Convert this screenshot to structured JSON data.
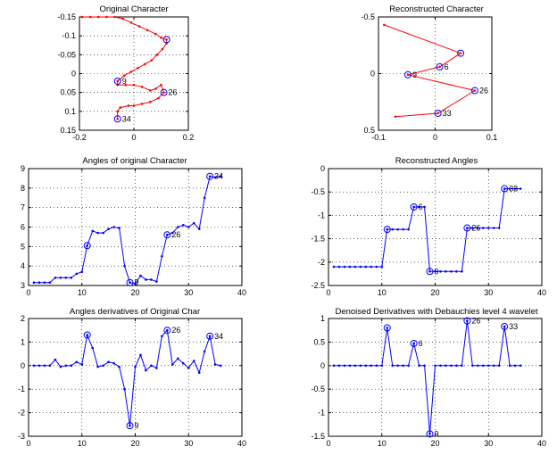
{
  "chart_data": [
    {
      "id": "orig-char",
      "title": "Original Character",
      "type": "line",
      "xlim": [
        -0.2,
        0.2
      ],
      "ylim": [
        -0.15,
        0.15
      ],
      "ydir": "reverse",
      "aspect": "equal",
      "grid": true,
      "color": "#ff0000",
      "xticks": [
        -0.2,
        0,
        0.2
      ],
      "xtick_labels": [
        "-0.2",
        "0",
        "0.2"
      ],
      "yticks": [
        -0.15,
        -0.1,
        -0.05,
        0,
        0.05,
        0.1,
        0.15
      ],
      "ytick_labels": [
        "-0.15",
        "-0.1",
        "-0.05",
        "0",
        "0.05",
        "0.1",
        "0.15"
      ],
      "x": [
        -0.19,
        -0.16,
        -0.13,
        -0.1,
        -0.07,
        -0.04,
        -0.01,
        0.02,
        0.05,
        0.08,
        0.1,
        0.12,
        0.12,
        0.105,
        0.085,
        0.065,
        0.04,
        0.015,
        -0.01,
        -0.035,
        -0.06,
        -0.06,
        -0.03,
        0.0,
        0.03,
        0.06,
        0.08,
        0.1,
        0.11,
        0.09,
        0.06,
        0.03,
        -0.0,
        -0.02,
        -0.05,
        -0.06,
        -0.06
      ],
      "y": [
        -0.15,
        -0.15,
        -0.15,
        -0.15,
        -0.15,
        -0.145,
        -0.135,
        -0.125,
        -0.115,
        -0.105,
        -0.095,
        -0.09,
        -0.08,
        -0.065,
        -0.05,
        -0.035,
        -0.025,
        -0.015,
        -0.005,
        0.005,
        0.02,
        0.03,
        0.03,
        0.03,
        0.035,
        0.045,
        0.04,
        0.03,
        0.05,
        0.065,
        0.075,
        0.08,
        0.085,
        0.085,
        0.09,
        0.1,
        0.12
      ],
      "markers": [
        {
          "index": 11,
          "label": ""
        },
        {
          "index": 20,
          "label": "9"
        },
        {
          "index": 28,
          "label": "26"
        },
        {
          "index": 36,
          "label": "34"
        }
      ]
    },
    {
      "id": "recon-char",
      "title": "Reconstructed Character",
      "type": "line",
      "xlim": [
        -0.1,
        0.1
      ],
      "ylim": [
        -0.5,
        0.5
      ],
      "ydir": "reverse",
      "aspect": "equal",
      "grid": true,
      "color": "#ff0000",
      "xticks": [
        -0.1,
        0,
        0.1
      ],
      "xtick_labels": [
        "-0.1",
        "0",
        "0.1"
      ],
      "yticks": [
        -0.5,
        0,
        0.5
      ],
      "ytick_labels": [
        "-0.5",
        "0",
        "0.5"
      ],
      "x": [
        -0.09,
        0.045,
        0.008,
        -0.048,
        0.07,
        0.005,
        -0.07
      ],
      "y": [
        -0.43,
        -0.18,
        -0.06,
        0.01,
        0.15,
        0.35,
        0.38
      ],
      "markers": [
        {
          "index": 1,
          "label": ""
        },
        {
          "index": 2,
          "label": "6"
        },
        {
          "index": 3,
          "label": "9"
        },
        {
          "index": 4,
          "label": "26"
        },
        {
          "index": 5,
          "label": "33"
        }
      ]
    },
    {
      "id": "orig-angles",
      "title": "Angles of original Character",
      "type": "line",
      "xlim": [
        0,
        40
      ],
      "ylim": [
        3,
        9
      ],
      "grid": true,
      "color": "#0000ff",
      "xticks": [
        0,
        10,
        20,
        30,
        40
      ],
      "xtick_labels": [
        "0",
        "10",
        "20",
        "30",
        "40"
      ],
      "yticks": [
        3,
        4,
        5,
        6,
        7,
        8,
        9
      ],
      "ytick_labels": [
        "3",
        "4",
        "5",
        "6",
        "7",
        "8",
        "9"
      ],
      "x": [
        1,
        2,
        3,
        4,
        5,
        6,
        7,
        8,
        9,
        10,
        11,
        12,
        13,
        14,
        15,
        16,
        17,
        18,
        19,
        20,
        21,
        22,
        23,
        24,
        25,
        26,
        27,
        28,
        29,
        30,
        31,
        32,
        33,
        34,
        35,
        36
      ],
      "y": [
        3.15,
        3.15,
        3.15,
        3.15,
        3.4,
        3.4,
        3.4,
        3.4,
        3.6,
        3.7,
        5.05,
        5.8,
        5.7,
        5.7,
        5.9,
        6.0,
        5.95,
        4.0,
        3.15,
        3.1,
        3.5,
        3.3,
        3.3,
        3.2,
        4.5,
        5.6,
        5.7,
        6.0,
        6.1,
        6.0,
        6.2,
        5.9,
        7.5,
        8.6,
        8.55,
        8.6
      ],
      "markers": [
        {
          "index": 10,
          "label": ""
        },
        {
          "index": 18,
          "label": "9"
        },
        {
          "index": 25,
          "label": "26"
        },
        {
          "index": 33,
          "label": "34"
        }
      ]
    },
    {
      "id": "recon-angles",
      "title": "Reconstructed Angles",
      "type": "line",
      "xlim": [
        0,
        40
      ],
      "ylim": [
        -2.5,
        0
      ],
      "grid": true,
      "color": "#0000ff",
      "xticks": [
        0,
        10,
        20,
        30,
        40
      ],
      "xtick_labels": [
        "0",
        "10",
        "20",
        "30",
        "40"
      ],
      "yticks": [
        -2.5,
        -2,
        -1.5,
        -1,
        -0.5,
        0
      ],
      "ytick_labels": [
        "-2.5",
        "-2",
        "-1.5",
        "-1",
        "-0.5",
        "0"
      ],
      "x": [
        1,
        2,
        3,
        4,
        5,
        6,
        7,
        8,
        9,
        10,
        11,
        12,
        13,
        14,
        15,
        16,
        17,
        18,
        19,
        20,
        21,
        22,
        23,
        24,
        25,
        26,
        27,
        28,
        29,
        30,
        31,
        32,
        33,
        34,
        35,
        36
      ],
      "y": [
        -2.1,
        -2.1,
        -2.1,
        -2.1,
        -2.1,
        -2.1,
        -2.1,
        -2.1,
        -2.1,
        -2.1,
        -1.3,
        -1.3,
        -1.3,
        -1.3,
        -1.3,
        -0.82,
        -0.82,
        -0.82,
        -2.2,
        -2.2,
        -2.2,
        -2.2,
        -2.2,
        -2.2,
        -2.2,
        -1.27,
        -1.27,
        -1.27,
        -1.27,
        -1.27,
        -1.27,
        -1.27,
        -0.43,
        -0.43,
        -0.43,
        -0.43
      ],
      "markers": [
        {
          "index": 10,
          "label": ""
        },
        {
          "index": 15,
          "label": "6"
        },
        {
          "index": 18,
          "label": "9"
        },
        {
          "index": 25,
          "label": "26"
        },
        {
          "index": 32,
          "label": "33"
        }
      ]
    },
    {
      "id": "orig-deriv",
      "title": "Angles derivatives of Original Char",
      "type": "line",
      "xlim": [
        0,
        40
      ],
      "ylim": [
        -3,
        2
      ],
      "grid": true,
      "color": "#0000ff",
      "xticks": [
        0,
        10,
        20,
        30,
        40
      ],
      "xtick_labels": [
        "0",
        "10",
        "20",
        "30",
        "40"
      ],
      "yticks": [
        -3,
        -2,
        -1,
        0,
        1,
        2
      ],
      "ytick_labels": [
        "-3",
        "-2",
        "-1",
        "0",
        "1",
        "2"
      ],
      "x": [
        1,
        2,
        3,
        4,
        5,
        6,
        7,
        8,
        9,
        10,
        11,
        12,
        13,
        14,
        15,
        16,
        17,
        18,
        19,
        20,
        21,
        22,
        23,
        24,
        25,
        26,
        27,
        28,
        29,
        30,
        31,
        32,
        33,
        34,
        35,
        36
      ],
      "y": [
        0,
        0,
        0,
        0,
        0.25,
        -0.05,
        0,
        0,
        0.15,
        0.05,
        1.3,
        0.75,
        -0.05,
        0,
        0.15,
        0.1,
        -0.05,
        -1.0,
        -2.55,
        -0.05,
        0.45,
        -0.2,
        0.0,
        -0.1,
        1.25,
        1.5,
        0.05,
        0.3,
        0.1,
        -0.1,
        0.2,
        -0.3,
        0.6,
        1.25,
        0.05,
        0.0
      ],
      "markers": [
        {
          "index": 10,
          "label": ""
        },
        {
          "index": 18,
          "label": "9"
        },
        {
          "index": 25,
          "label": "26"
        },
        {
          "index": 33,
          "label": "34"
        }
      ]
    },
    {
      "id": "denoised-deriv",
      "title": "Denoised Derivatives with Debauchies level 4 wavelet",
      "type": "line",
      "xlim": [
        0,
        40
      ],
      "ylim": [
        -1.5,
        1
      ],
      "grid": true,
      "color": "#0000ff",
      "xticks": [
        0,
        10,
        20,
        30,
        40
      ],
      "xtick_labels": [
        "0",
        "10",
        "20",
        "30",
        "40"
      ],
      "yticks": [
        -1.5,
        -1,
        -0.5,
        0,
        0.5,
        1
      ],
      "ytick_labels": [
        "-1.5",
        "-1",
        "-0.5",
        "0",
        "0.5",
        "1"
      ],
      "x": [
        1,
        2,
        3,
        4,
        5,
        6,
        7,
        8,
        9,
        10,
        11,
        12,
        13,
        14,
        15,
        16,
        17,
        18,
        19,
        20,
        21,
        22,
        23,
        24,
        25,
        26,
        27,
        28,
        29,
        30,
        31,
        32,
        33,
        34,
        35,
        36
      ],
      "y": [
        0,
        0,
        0,
        0,
        0,
        0,
        0,
        0,
        0,
        0,
        0.8,
        0,
        0,
        0,
        0,
        0.47,
        0,
        0,
        -1.45,
        0,
        0,
        0,
        0,
        0,
        0,
        0.95,
        0,
        0,
        0,
        0,
        0,
        0,
        0.83,
        0,
        0,
        0
      ],
      "markers": [
        {
          "index": 10,
          "label": ""
        },
        {
          "index": 15,
          "label": "6"
        },
        {
          "index": 18,
          "label": "9"
        },
        {
          "index": 25,
          "label": "26"
        },
        {
          "index": 32,
          "label": "33"
        }
      ]
    }
  ]
}
